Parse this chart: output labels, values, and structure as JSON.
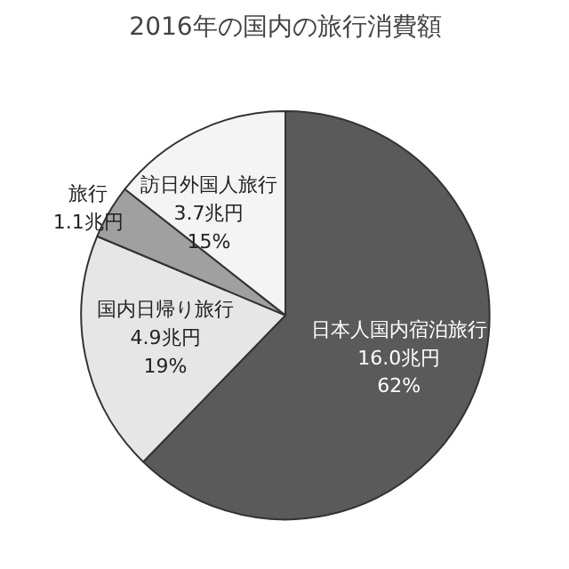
{
  "chart_data": {
    "type": "pie",
    "title": "2016年の国内の旅行消費額",
    "categories": [
      "日本人国内宿泊旅行",
      "国内日帰り旅行",
      "旅行",
      "訪日外国人旅行"
    ],
    "values": [
      16.0,
      4.9,
      1.1,
      3.7
    ],
    "value_labels": [
      "16.0兆円\n62%",
      "4.9兆円\n19%",
      "1.1兆円",
      "3.7兆円\n15%"
    ],
    "colors": [
      "#5a5a5a",
      "#e6e6e6",
      "#a0a0a0",
      "#f4f4f4"
    ]
  }
}
